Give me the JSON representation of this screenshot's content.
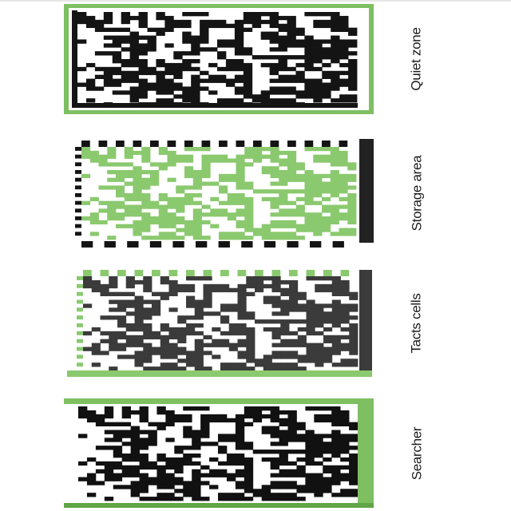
{
  "colors": {
    "green": "#8bc96f",
    "frame_green": "#7dbf61",
    "dark": "#141414",
    "gray": "#3b3b3b",
    "white": "#ffffff"
  },
  "panels": [
    {
      "label": "Quiet zone",
      "highlight": "quiet-zone",
      "data_color": "#141414",
      "frame_color": "#7dbf61"
    },
    {
      "label": "Storage area",
      "highlight": "storage-area",
      "data_color": "#8bc96f",
      "frame_color": "#222222"
    },
    {
      "label": "Tacts cells",
      "highlight": "tact-cells",
      "data_color": "#3b3b3b",
      "frame_color": "#8bc96f"
    },
    {
      "label": "Searcher",
      "highlight": "finder-pattern",
      "data_color": "#111111",
      "frame_color": "#7dbf61"
    }
  ]
}
